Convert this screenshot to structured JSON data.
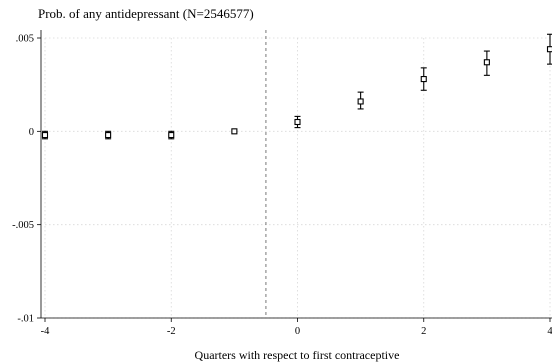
{
  "chart_data": {
    "type": "scatter",
    "title": "Prob. of any antidepressant (N=2546577)",
    "xlabel": "Quarters with respect to first contraceptive",
    "ylabel": "",
    "xlim": [
      -4,
      4
    ],
    "ylim": [
      -0.01,
      0.005
    ],
    "x_ticks": [
      -4,
      -2,
      0,
      2,
      4
    ],
    "y_ticks": [
      0.005,
      0,
      -0.005,
      -0.01
    ],
    "y_tick_labels": [
      ".005",
      "0",
      "-.005",
      "-.01"
    ],
    "x_tick_labels": [
      "-4",
      "-2",
      "0",
      "2",
      "4"
    ],
    "reference_line_x": -0.5,
    "grid": true,
    "series": [
      {
        "marker": "hollow-square",
        "error_bars": true,
        "points": [
          {
            "x": -4,
            "y": -0.0002,
            "lo": -0.0004,
            "hi": 0.0
          },
          {
            "x": -3,
            "y": -0.0002,
            "lo": -0.0004,
            "hi": 0.0
          },
          {
            "x": -2,
            "y": -0.0002,
            "lo": -0.0004,
            "hi": 0.0
          },
          {
            "x": -1,
            "y": 0.0,
            "lo": 0.0,
            "hi": 0.0
          },
          {
            "x": 0,
            "y": 0.0005,
            "lo": 0.0002,
            "hi": 0.0008
          },
          {
            "x": 1,
            "y": 0.0016,
            "lo": 0.0012,
            "hi": 0.0021
          },
          {
            "x": 2,
            "y": 0.0028,
            "lo": 0.0022,
            "hi": 0.0034
          },
          {
            "x": 3,
            "y": 0.0037,
            "lo": 0.003,
            "hi": 0.0043
          },
          {
            "x": 4,
            "y": 0.0044,
            "lo": 0.0036,
            "hi": 0.0052
          }
        ]
      }
    ]
  }
}
